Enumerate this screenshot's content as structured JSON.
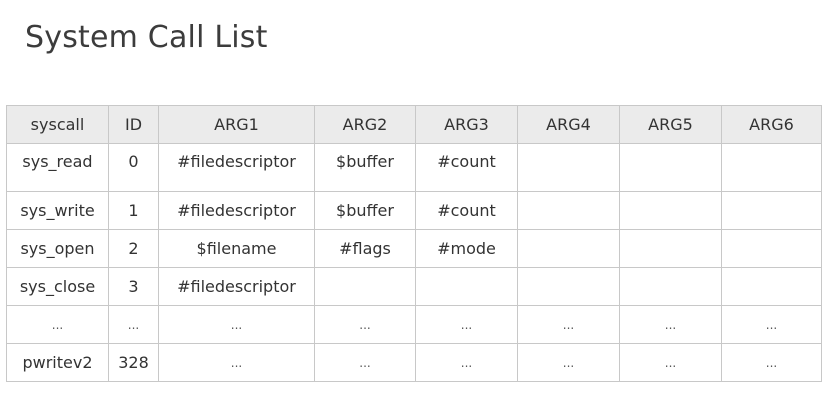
{
  "title": "System Call List",
  "colors": {
    "descriptor_arg": "#c0312b",
    "pointer_arg": "#2e8b2e",
    "header_bg": "#ebebeb",
    "border": "#c8c8c8"
  },
  "table": {
    "headers": [
      "syscall",
      "ID",
      "ARG1",
      "ARG2",
      "ARG3",
      "ARG4",
      "ARG5",
      "ARG6"
    ],
    "rows": [
      [
        "sys_read",
        "0",
        "#filedescriptor",
        "$buffer",
        "#count",
        "",
        "",
        ""
      ],
      [
        "sys_write",
        "1",
        "#filedescriptor",
        "$buffer",
        "#count",
        "",
        "",
        ""
      ],
      [
        "sys_open",
        "2",
        "$filename",
        "#flags",
        "#mode",
        "",
        "",
        ""
      ],
      [
        "sys_close",
        "3",
        "#filedescriptor",
        "",
        "",
        "",
        "",
        ""
      ],
      [
        "...",
        "...",
        "...",
        "...",
        "...",
        "...",
        "...",
        "..."
      ],
      [
        "pwritev2",
        "328",
        "...",
        "...",
        "...",
        "...",
        "...",
        "..."
      ]
    ]
  }
}
